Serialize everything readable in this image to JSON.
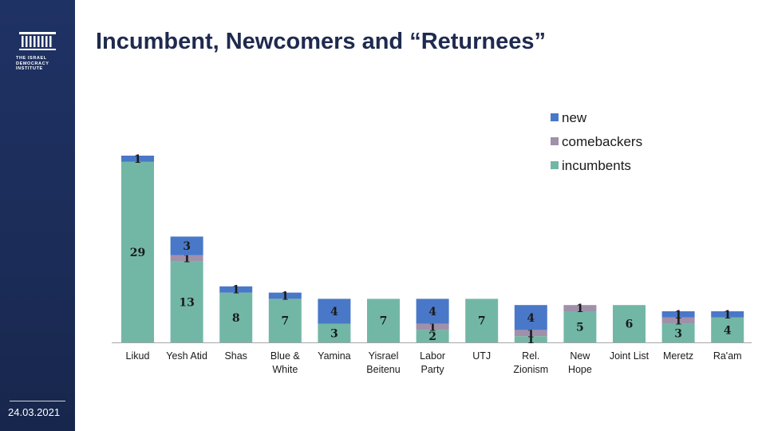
{
  "header": {
    "title": "Incumbent, Newcomers and “Returnees”"
  },
  "sidebar": {
    "org_lines": [
      "THE ISRAEL",
      "DEMOCRACY",
      "INSTITUTE"
    ],
    "date": "24.03.2021"
  },
  "colors": {
    "new": "#4a78c8",
    "comebackers": "#a090aa",
    "incumbents": "#72b7a6"
  },
  "chart_data": {
    "type": "bar",
    "stacked": true,
    "categories": [
      [
        "Likud"
      ],
      [
        "Yesh Atid"
      ],
      [
        "Shas"
      ],
      [
        "Blue &",
        "White"
      ],
      [
        "Yamina"
      ],
      [
        "Yisrael",
        "Beitenu"
      ],
      [
        "Labor",
        "Party"
      ],
      [
        "UTJ"
      ],
      [
        "Rel.",
        "Zionism"
      ],
      [
        "New",
        "Hope"
      ],
      [
        "Joint List"
      ],
      [
        "Meretz"
      ],
      [
        "Ra'am"
      ]
    ],
    "series": [
      {
        "name": "incumbents",
        "values": [
          29,
          13,
          8,
          7,
          3,
          7,
          2,
          7,
          1,
          5,
          6,
          3,
          4
        ]
      },
      {
        "name": "comebackers",
        "values": [
          0,
          1,
          0,
          0,
          0,
          0,
          1,
          0,
          1,
          1,
          0,
          1,
          0
        ]
      },
      {
        "name": "new",
        "values": [
          1,
          3,
          1,
          1,
          4,
          0,
          4,
          0,
          4,
          0,
          0,
          1,
          1
        ]
      }
    ],
    "legend_order": [
      "new",
      "comebackers",
      "incumbents"
    ],
    "legend_position": "top-right",
    "ylim": [
      0,
      31
    ],
    "grid": false
  }
}
